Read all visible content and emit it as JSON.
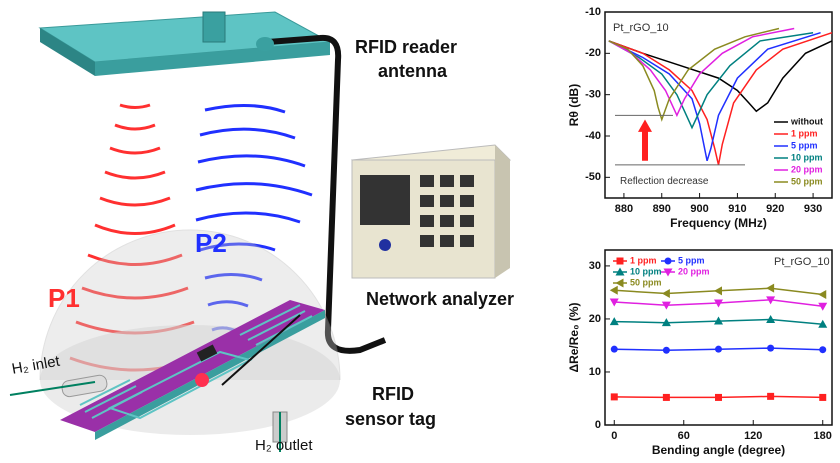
{
  "illustration": {
    "p1": "P1",
    "p2": "P2",
    "reader_antenna": [
      "RFID reader",
      "antenna"
    ],
    "network_analyzer": "Network analyzer",
    "sensor_tag": [
      "RFID",
      "sensor tag"
    ],
    "inlet": "H₂ inlet",
    "outlet": "H₂ outlet"
  },
  "chart_data": [
    {
      "type": "line",
      "x_label": "Frequency (MHz)",
      "y_label": "Rθ (dB)",
      "annotations": [
        "Pt_rGO_10",
        "Reflection decrease"
      ],
      "legend": "lower right",
      "xlim": [
        875,
        935
      ],
      "xticks": [
        880,
        890,
        900,
        910,
        920,
        930
      ],
      "ylim": [
        -55,
        -10
      ],
      "yticks": [
        -10,
        -20,
        -30,
        -40,
        -50
      ],
      "series": [
        {
          "name": "without",
          "color": "#000000",
          "x": [
            876,
            885,
            895,
            905,
            910,
            913,
            915,
            918,
            922,
            928,
            935
          ],
          "values": [
            -17,
            -20,
            -23,
            -26,
            -29,
            -32,
            -34,
            -32,
            -26,
            -20,
            -17
          ]
        },
        {
          "name": "1 ppm",
          "color": "#ff2020",
          "x": [
            876,
            885,
            892,
            898,
            902,
            904,
            905,
            906,
            909,
            915,
            922,
            935
          ],
          "values": [
            -17,
            -20,
            -24,
            -29,
            -36,
            -43,
            -47,
            -42,
            -32,
            -24,
            -19,
            -15
          ]
        },
        {
          "name": "5 ppm",
          "color": "#2030ff",
          "x": [
            876,
            885,
            892,
            898,
            900,
            902,
            903,
            905,
            910,
            918,
            932
          ],
          "values": [
            -17,
            -21,
            -25,
            -31,
            -37,
            -46,
            -43,
            -35,
            -26,
            -19,
            -15
          ]
        },
        {
          "name": "10 ppm",
          "color": "#008080",
          "x": [
            876,
            884,
            890,
            894,
            896,
            898,
            899,
            902,
            908,
            916,
            930
          ],
          "values": [
            -17,
            -21,
            -25,
            -30,
            -34,
            -38,
            -36,
            -30,
            -23,
            -17,
            -15
          ]
        },
        {
          "name": "20 ppm",
          "color": "#e020e0",
          "x": [
            876,
            882,
            887,
            891,
            893,
            894,
            896,
            900,
            906,
            914,
            925
          ],
          "values": [
            -17,
            -20,
            -24,
            -29,
            -33,
            -35,
            -31,
            -25,
            -20,
            -16,
            -14
          ]
        },
        {
          "name": "50 ppm",
          "color": "#8a8a20",
          "x": [
            876,
            881,
            885,
            888,
            889,
            890,
            892,
            897,
            904,
            912,
            921
          ],
          "values": [
            -17,
            -19,
            -23,
            -29,
            -33,
            -36,
            -31,
            -24,
            -19,
            -16,
            -14
          ]
        }
      ]
    },
    {
      "type": "line",
      "x_label": "Bending angle (degree)",
      "y_label": "ΔRe/Re₀ (%)",
      "annotations": [
        "Pt_rGO_10"
      ],
      "legend": "upper left",
      "xlim": [
        -8,
        188
      ],
      "xticks": [
        0,
        60,
        120,
        180
      ],
      "ylim": [
        0,
        33
      ],
      "yticks": [
        0,
        10,
        20,
        30
      ],
      "x": [
        0,
        45,
        90,
        135,
        180
      ],
      "series": [
        {
          "name": "1 ppm",
          "color": "#ff2020",
          "marker": "square",
          "values": [
            5.3,
            5.2,
            5.2,
            5.4,
            5.2
          ]
        },
        {
          "name": "5 ppm",
          "color": "#2030ff",
          "marker": "circle",
          "values": [
            14.3,
            14.1,
            14.3,
            14.5,
            14.2
          ]
        },
        {
          "name": "10 ppm",
          "color": "#008080",
          "marker": "triangle-up",
          "values": [
            19.5,
            19.3,
            19.6,
            19.9,
            19.0
          ]
        },
        {
          "name": "20 ppm",
          "color": "#e020e0",
          "marker": "triangle-down",
          "values": [
            23.2,
            22.6,
            23.0,
            23.6,
            22.4
          ]
        },
        {
          "name": "50 ppm",
          "color": "#8a8a20",
          "marker": "triangle-left",
          "values": [
            25.4,
            24.8,
            25.3,
            25.8,
            24.6
          ]
        }
      ]
    }
  ]
}
